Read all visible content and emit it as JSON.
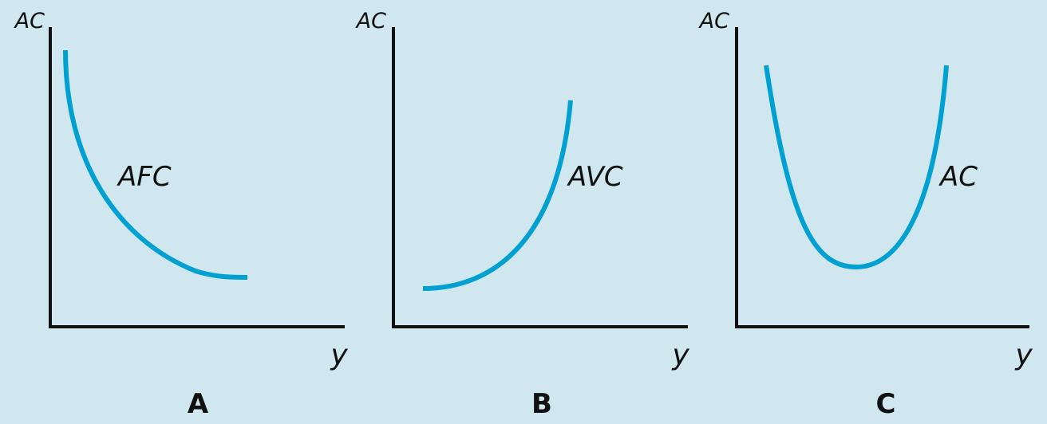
{
  "colors": {
    "background": "#d1e7f0",
    "curve": "#00a0d0",
    "axis": "#111111"
  },
  "chart_data": [
    {
      "type": "line",
      "panel_label": "A",
      "ylabel": "AC",
      "xlabel": "y",
      "xlim": [
        0,
        10
      ],
      "ylim": [
        0,
        10
      ],
      "series": [
        {
          "name": "AFC",
          "x": [
            0.5,
            1,
            1.5,
            2,
            3,
            4,
            5,
            6,
            6.7
          ],
          "y": [
            10,
            7.5,
            6.0,
            5.0,
            3.7,
            2.8,
            2.2,
            1.85,
            1.8
          ]
        }
      ]
    },
    {
      "type": "line",
      "panel_label": "B",
      "ylabel": "AC",
      "xlabel": "y",
      "xlim": [
        0,
        10
      ],
      "ylim": [
        0,
        10
      ],
      "series": [
        {
          "name": "AVC",
          "x": [
            1,
            2,
            3,
            4,
            5,
            5.5,
            6,
            6.3
          ],
          "y": [
            1.4,
            1.7,
            2.5,
            3.8,
            5.6,
            6.8,
            8.3,
            8.2
          ]
        }
      ]
    },
    {
      "type": "line",
      "panel_label": "C",
      "ylabel": "AC",
      "xlabel": "y",
      "xlim": [
        0,
        10
      ],
      "ylim": [
        0,
        10
      ],
      "series": [
        {
          "name": "AC",
          "x": [
            1,
            2,
            3,
            3.8,
            4.6,
            5.5,
            6,
            6.8
          ],
          "y": [
            9.5,
            5.5,
            3.0,
            2.2,
            2.5,
            4.5,
            6.2,
            9.5
          ]
        }
      ]
    }
  ]
}
